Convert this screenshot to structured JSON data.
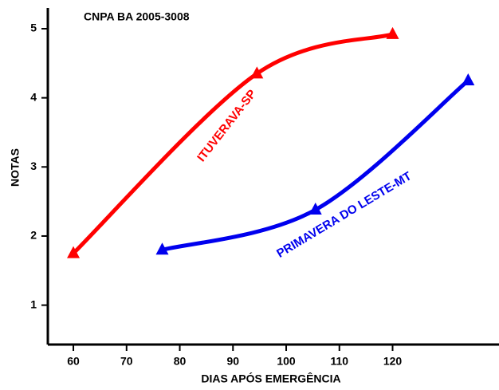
{
  "chart_data": {
    "type": "line",
    "title": "CNPA BA 2005-3008",
    "xlabel": "DIAS APÓS EMERGÊNCIA",
    "ylabel": "NOTAS",
    "xlim": [
      55.2,
      140
    ],
    "ylim": [
      0.43,
      5.3
    ],
    "xticks": [
      60,
      70,
      80,
      90,
      100,
      110,
      120
    ],
    "yticks": [
      1,
      2,
      3,
      4,
      5
    ],
    "series": [
      {
        "name": "ITUVERAVA-SP",
        "color": "#ff0000",
        "x": [
          60,
          94.5,
          120
        ],
        "values": [
          1.75,
          4.35,
          4.92
        ]
      },
      {
        "name": "PRIMAVERA DO LESTE-MT",
        "color": "#0000ee",
        "x": [
          76.7,
          105.5,
          134.2
        ],
        "values": [
          1.8,
          2.38,
          4.25
        ]
      }
    ]
  }
}
